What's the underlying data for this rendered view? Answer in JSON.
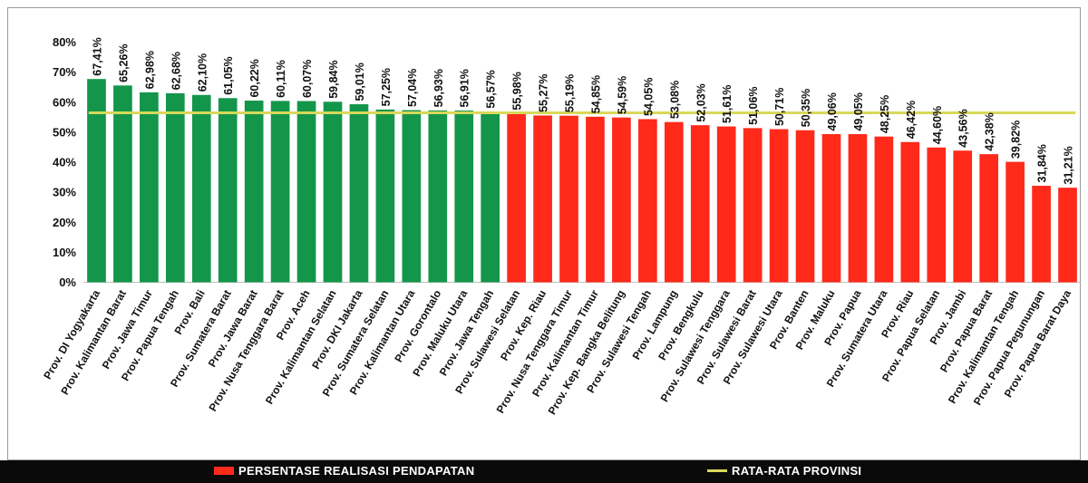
{
  "chart_data": {
    "type": "bar",
    "categories": [
      "Prov. DI Yogyakarta",
      "Prov. Kalimantan Barat",
      "Prov. Jawa Timur",
      "Prov. Papua Tengah",
      "Prov. Bali",
      "Prov. Sumatera Barat",
      "Prov. Jawa Barat",
      "Prov. Nusa Tenggara Barat",
      "Prov. Aceh",
      "Prov. Kalimantan Selatan",
      "Prov. DKI Jakarta",
      "Prov. Sumatera Selatan",
      "Prov. Kalimantan Utara",
      "Prov. Gorontalo",
      "Prov. Maluku Utara",
      "Prov. Jawa Tengah",
      "Prov. Sulawesi Selatan",
      "Prov. Kep. Riau",
      "Prov. Nusa Tenggara Timur",
      "Prov. Kalimantan Timur",
      "Prov. Kep. Bangka Belitung",
      "Prov. Sulawesi Tengah",
      "Prov. Lampung",
      "Prov. Bengkulu",
      "Prov. Sulawesi Tenggara",
      "Prov. Sulawesi Barat",
      "Prov. Sulawesi Utara",
      "Prov. Banten",
      "Prov. Maluku",
      "Prov. Papua",
      "Prov. Sumatera Utara",
      "Prov. Riau",
      "Prov. Papua Selatan",
      "Prov. Jambi",
      "Prov. Papua Barat",
      "Prov. Kalimantan Tengah",
      "Prov. Papua Pegunungan",
      "Prov. Papua Barat Daya"
    ],
    "values": [
      67.41,
      65.26,
      62.98,
      62.68,
      62.1,
      61.05,
      60.22,
      60.11,
      60.07,
      59.84,
      59.01,
      57.25,
      57.04,
      56.93,
      56.91,
      56.57,
      55.98,
      55.27,
      55.19,
      54.85,
      54.59,
      54.05,
      53.08,
      52.03,
      51.61,
      51.06,
      50.71,
      50.35,
      49.06,
      49.05,
      48.25,
      46.42,
      44.6,
      43.56,
      42.38,
      39.82,
      31.84,
      31.21
    ],
    "value_labels": [
      "67,41%",
      "65,26%",
      "62,98%",
      "62,68%",
      "62,10%",
      "61,05%",
      "60,22%",
      "60,11%",
      "60,07%",
      "59,84%",
      "59,01%",
      "57,25%",
      "57,04%",
      "56,93%",
      "56,91%",
      "56,57%",
      "55,98%",
      "55,27%",
      "55,19%",
      "54,85%",
      "54,59%",
      "54,05%",
      "53,08%",
      "52,03%",
      "51,61%",
      "51,06%",
      "50,71%",
      "50,35%",
      "49,06%",
      "49,05%",
      "48,25%",
      "46,42%",
      "44,60%",
      "43,56%",
      "42,38%",
      "39,82%",
      "31,84%",
      "31,21%"
    ],
    "above_average_count": 16,
    "average_value": 56.3,
    "y_ticks": [
      "0%",
      "10%",
      "20%",
      "30%",
      "40%",
      "50%",
      "60%",
      "70%",
      "80%"
    ],
    "ylim": [
      0,
      80
    ],
    "grid": false,
    "colors": {
      "above_average": "#14964a",
      "below_average": "#ff2a1a",
      "average_line": "#d8d85a"
    },
    "legend": {
      "position": "bottom",
      "bar_label": "PERSENTASE REALISASI PENDAPATAN",
      "line_label": "RATA-RATA PROVINSI"
    }
  }
}
